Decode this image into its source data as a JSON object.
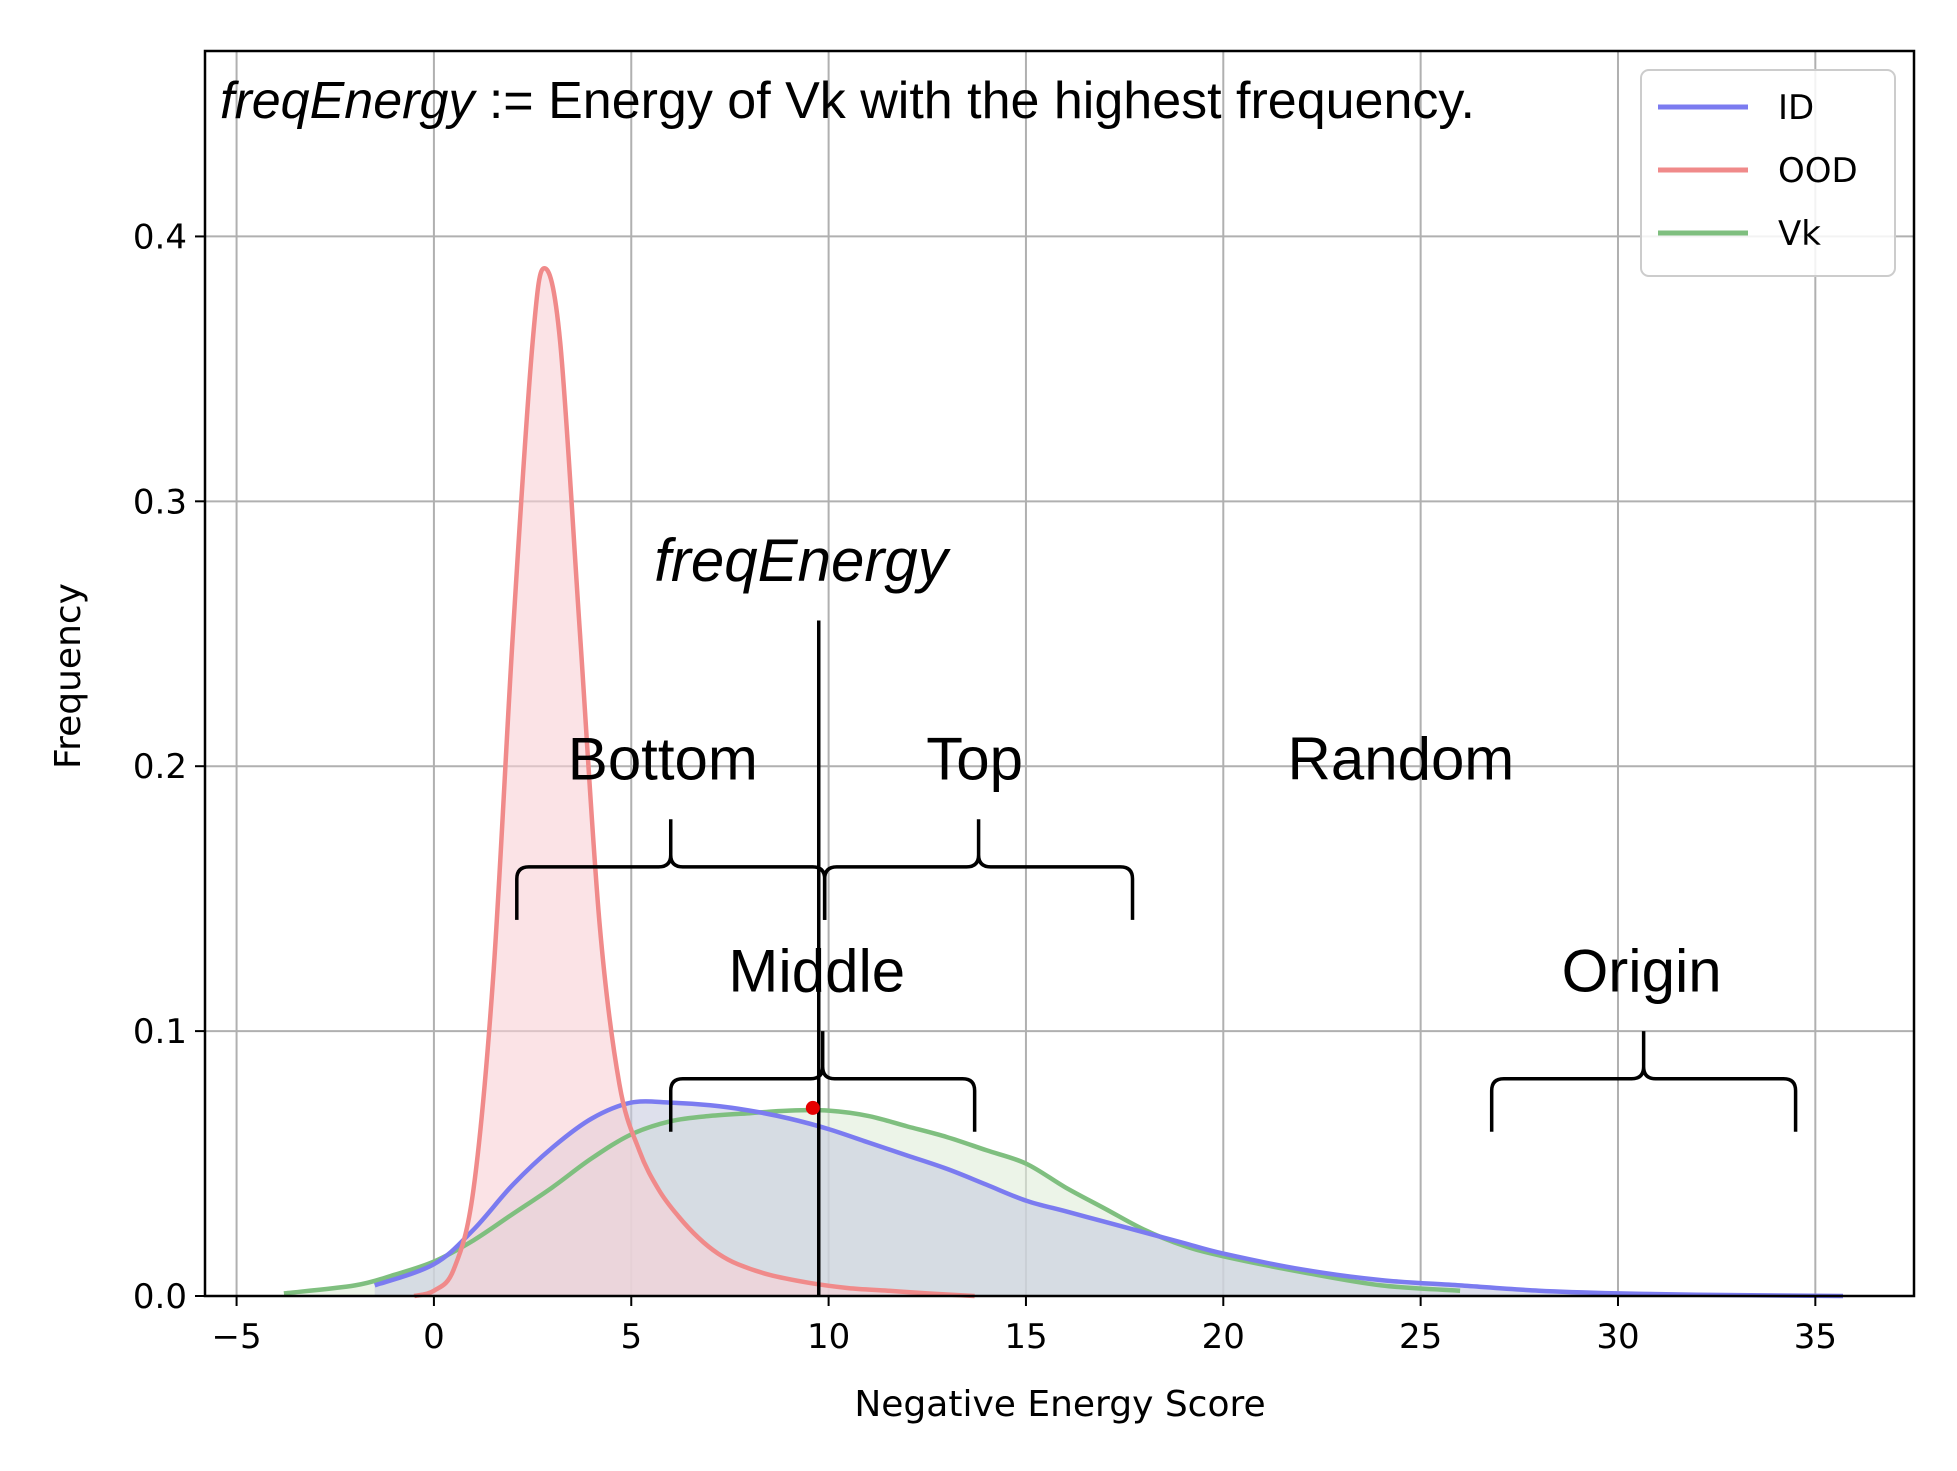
{
  "chart_data": {
    "type": "area",
    "title": "",
    "xlabel": "Negative Energy Score",
    "ylabel": "Frequency",
    "xlim": [
      -5.8,
      37.5
    ],
    "ylim": [
      0,
      0.47
    ],
    "xticks": [
      -5,
      0,
      5,
      10,
      15,
      20,
      25,
      30,
      35
    ],
    "xtick_labels": [
      "−5",
      "0",
      "5",
      "10",
      "15",
      "20",
      "25",
      "30",
      "35"
    ],
    "yticks": [
      0.0,
      0.1,
      0.2,
      0.3,
      0.4
    ],
    "ytick_labels": [
      "0.0",
      "0.1",
      "0.2",
      "0.3",
      "0.4"
    ],
    "grid": true,
    "legend_position": "top-right",
    "headline": {
      "italic_part": "freqEnergy",
      "rest": " := Energy of Vk with the highest frequency."
    },
    "series": [
      {
        "name": "ID",
        "color": "#7b7bf0",
        "fill": "#c8cce0",
        "x": [
          -1.5,
          0,
          1,
          2,
          3,
          4,
          5,
          6,
          7,
          8,
          9,
          10,
          11,
          12,
          13,
          14,
          15,
          16,
          17,
          18,
          19,
          20,
          22,
          24,
          26,
          28,
          30,
          32,
          35.7
        ],
        "y": [
          0.004,
          0.012,
          0.025,
          0.042,
          0.056,
          0.067,
          0.073,
          0.073,
          0.072,
          0.07,
          0.067,
          0.063,
          0.058,
          0.053,
          0.048,
          0.042,
          0.036,
          0.032,
          0.028,
          0.024,
          0.02,
          0.016,
          0.01,
          0.006,
          0.004,
          0.002,
          0.001,
          0.0005,
          0.0
        ]
      },
      {
        "name": "OOD",
        "color": "#f08a8a",
        "fill": "#f8d0d6",
        "x": [
          -0.5,
          0,
          0.5,
          1,
          1.5,
          2,
          2.5,
          2.8,
          3.2,
          3.7,
          4.2,
          4.7,
          5.2,
          5.7,
          6.2,
          6.7,
          7.2,
          7.7,
          8.5,
          9.5,
          10.5,
          11.5,
          12.5,
          13.7
        ],
        "y": [
          0.0,
          0.002,
          0.01,
          0.04,
          0.12,
          0.25,
          0.36,
          0.388,
          0.36,
          0.25,
          0.14,
          0.08,
          0.055,
          0.04,
          0.03,
          0.022,
          0.016,
          0.012,
          0.008,
          0.005,
          0.003,
          0.002,
          0.001,
          0.0
        ]
      },
      {
        "name": "Vk",
        "color": "#7fbf7f",
        "fill": "#dfecd8",
        "x": [
          -3.8,
          -2,
          -1,
          0,
          1,
          2,
          3,
          4,
          5,
          6,
          7,
          8,
          9,
          10,
          11,
          12,
          13,
          14,
          15,
          16,
          17,
          18,
          19,
          20,
          22,
          24,
          26
        ],
        "y": [
          0.001,
          0.004,
          0.008,
          0.013,
          0.021,
          0.031,
          0.041,
          0.052,
          0.061,
          0.066,
          0.068,
          0.069,
          0.07,
          0.07,
          0.068,
          0.064,
          0.06,
          0.055,
          0.05,
          0.041,
          0.033,
          0.025,
          0.019,
          0.015,
          0.009,
          0.004,
          0.002
        ]
      }
    ],
    "vertical_line": {
      "x": 9.75,
      "y_top": 0.255
    },
    "marker": {
      "x": 9.6,
      "y": 0.071,
      "color": "#e60000"
    },
    "annotations": [
      {
        "text": "freqEnergy",
        "italic": true,
        "x": 9.3,
        "y": 0.27
      },
      {
        "text": "Bottom",
        "x": 5.8,
        "y": 0.195
      },
      {
        "text": "Top",
        "x": 13.7,
        "y": 0.195
      },
      {
        "text": "Random",
        "x": 24.5,
        "y": 0.195
      },
      {
        "text": "Middle",
        "x": 9.7,
        "y": 0.115
      },
      {
        "text": "Origin",
        "x": 30.6,
        "y": 0.115
      }
    ],
    "braces": [
      {
        "label": "Bottom",
        "x_start": 2.1,
        "x_end": 9.9,
        "y_base": 0.142,
        "y_bar": 0.162,
        "y_tip": 0.18
      },
      {
        "label": "Top",
        "x_start": 9.9,
        "x_end": 17.7,
        "y_base": 0.142,
        "y_bar": 0.162,
        "y_tip": 0.18
      },
      {
        "label": "Middle",
        "x_start": 6.0,
        "x_end": 13.7,
        "y_base": 0.062,
        "y_bar": 0.082,
        "y_tip": 0.1
      },
      {
        "label": "Origin",
        "x_start": 26.8,
        "x_end": 34.5,
        "y_base": 0.062,
        "y_bar": 0.082,
        "y_tip": 0.1
      }
    ]
  }
}
